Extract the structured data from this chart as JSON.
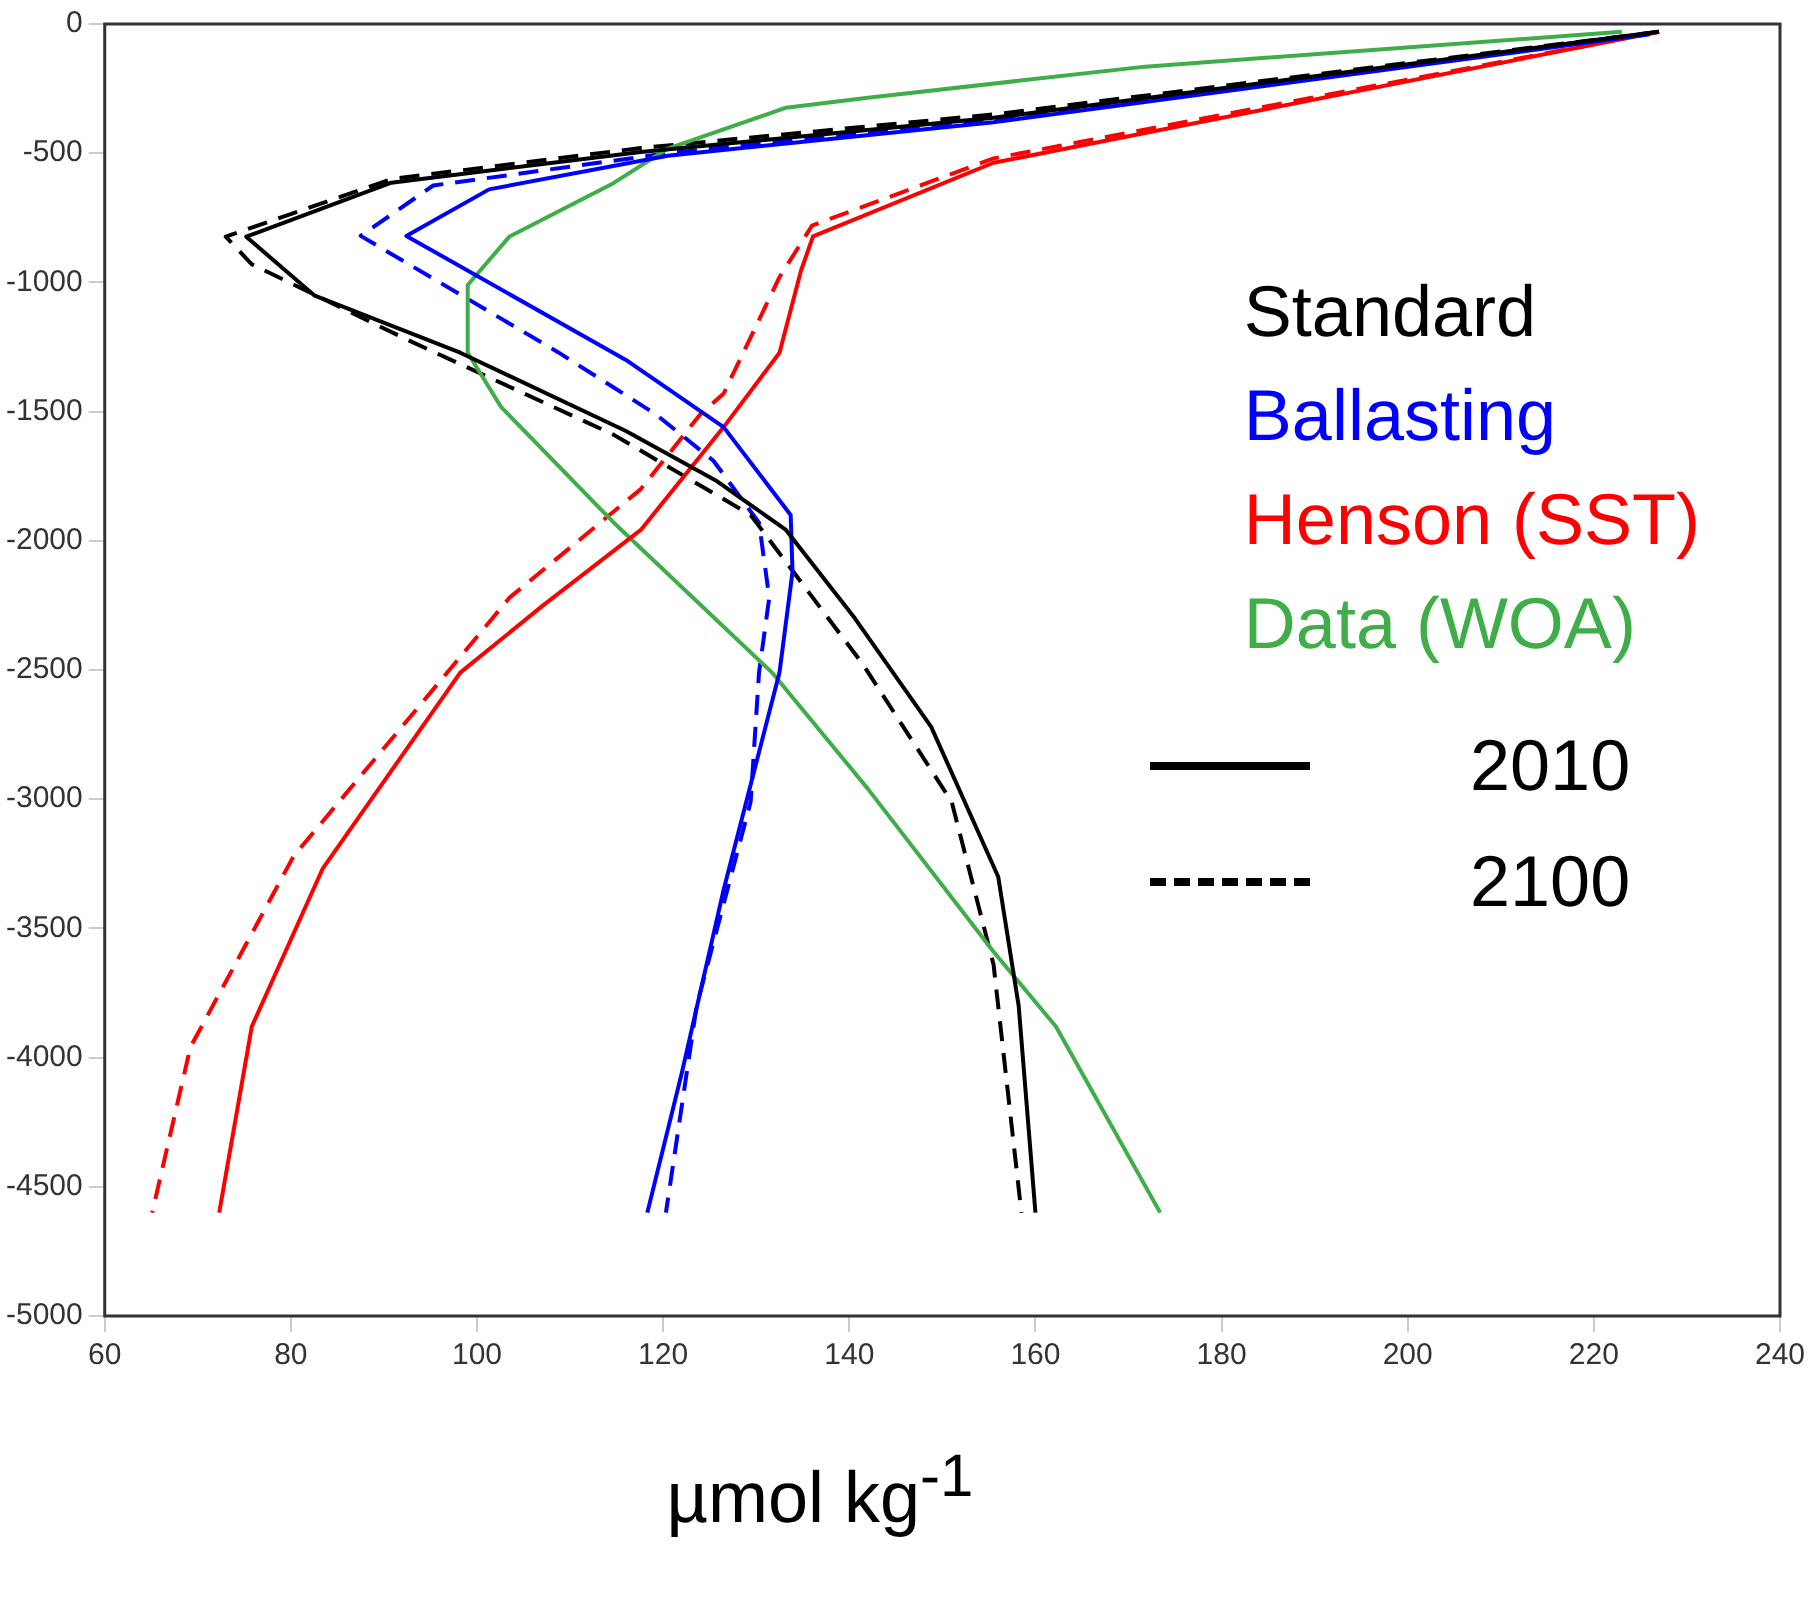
{
  "chart_data": {
    "type": "line",
    "xlabel": "µmol kg$^{-1}$",
    "xlim": [
      60,
      240
    ],
    "xticks": [
      60,
      80,
      100,
      120,
      140,
      160,
      180,
      200,
      220,
      240
    ],
    "ylim": [
      -5000,
      0
    ],
    "yticks": [
      -5000,
      -4500,
      -4000,
      -3500,
      -3000,
      -2500,
      -2000,
      -1500,
      -1000,
      -500,
      0
    ],
    "grid": false,
    "legend": "right",
    "marker": "none",
    "annotations": [
      "2010",
      "2100"
    ],
    "series": [
      {
        "name": "Standard",
        "color": "#000000",
        "line_style": "solid",
        "x": [
          227,
          155.5,
          117.6,
          90.8,
          75.2,
          82.5,
          98.2,
          116,
          125.8,
          133.2,
          140.6,
          148.8,
          156,
          158.2,
          160
        ],
        "values": [
          -30,
          -363,
          -495,
          -614,
          -823,
          -1050,
          -1272,
          -1575,
          -1770,
          -1958,
          -2300,
          -2720,
          -3300,
          -3800,
          -4600
        ]
      },
      {
        "name": "Ballasting",
        "color": "#0000ff",
        "line_style": "solid",
        "x": [
          226,
          155.5,
          120.5,
          101.3,
          92.4,
          116,
          126.5,
          133.7,
          133.9,
          132.5,
          126.5,
          122,
          118.3
        ],
        "values": [
          -40,
          -380,
          -510,
          -640,
          -820,
          -1300,
          -1560,
          -1900,
          -2120,
          -2510,
          -3350,
          -4060,
          -4600
        ]
      },
      {
        "name": "Henson (SST)",
        "color": "#ff0000",
        "line_style": "solid",
        "x": [
          227,
          155.5,
          136.1,
          134.8,
          132.5,
          126.5,
          117.6,
          107.1,
          98.2,
          83.4,
          75.8,
          72.3
        ],
        "values": [
          -30,
          -537,
          -822,
          -956,
          -1272,
          -1560,
          -1958,
          -2250,
          -2510,
          -3270,
          -3880,
          -4600
        ]
      },
      {
        "name": "Data (WOA)",
        "color": "#3fae49",
        "line_style": "solid",
        "x": [
          223,
          171.8,
          142,
          133.2,
          120.5,
          114.7,
          103.5,
          99,
          99,
          102.6,
          114.7,
          131.7,
          142,
          155.5,
          162.2,
          173.4
        ],
        "values": [
          -30,
          -165,
          -285,
          -324,
          -482,
          -615,
          -822,
          -1010,
          -1272,
          -1483,
          -1930,
          -2510,
          -2960,
          -3590,
          -3880,
          -4600
        ]
      },
      {
        "color": "#000000",
        "line_style": "dashed",
        "x": [
          227,
          155.5,
          117.6,
          90.8,
          73,
          75.8,
          92.4,
          114.7,
          129.4,
          141.5,
          151,
          155.5,
          158.4,
          158.5
        ],
        "values": [
          -30,
          -350,
          -480,
          -600,
          -823,
          -930,
          -1220,
          -1590,
          -1900,
          -2480,
          -3010,
          -3640,
          -4570,
          -4600
        ]
      },
      {
        "color": "#0000ff",
        "line_style": "dashed",
        "x": [
          226,
          155.5,
          120.5,
          95.3,
          87.5,
          108.7,
          119.2,
          125.4,
          130.3,
          131.4,
          130.3,
          129.4,
          123.6,
          120.3
        ],
        "values": [
          -35,
          -370,
          -500,
          -625,
          -820,
          -1270,
          -1510,
          -1690,
          -1930,
          -2220,
          -2510,
          -3010,
          -3800,
          -4600
        ]
      },
      {
        "color": "#ff0000",
        "line_style": "dashed",
        "x": [
          227,
          155.5,
          136,
          132.5,
          126.5,
          124,
          117.6,
          103.5,
          96.8,
          80.3,
          69.2,
          65.1
        ],
        "values": [
          -30,
          -520,
          -780,
          -980,
          -1430,
          -1510,
          -1800,
          -2220,
          -2510,
          -3220,
          -3960,
          -4600
        ]
      }
    ]
  }
}
